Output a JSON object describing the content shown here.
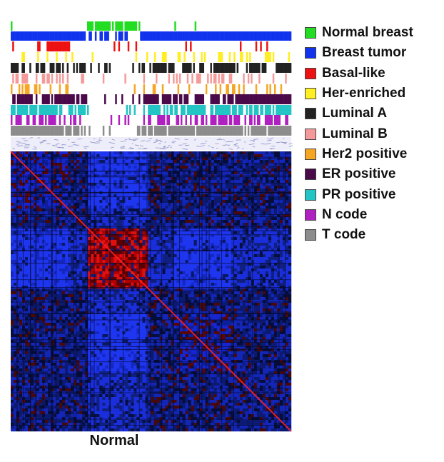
{
  "chart_data": {
    "type": "heatmap",
    "title": "",
    "xlabel": "Normal",
    "ylabel": "",
    "description_matrix": "sample-by-sample correlation matrix; red = high correlation, blue = low",
    "colors": {
      "high": "#e00000",
      "low": "#1a2ee6",
      "mid": "#0a1a6a",
      "diagonal": "#ff2020"
    },
    "annotation_tracks": [
      {
        "name": "Normal breast",
        "color": "#22dd22"
      },
      {
        "name": "Breast tumor",
        "color": "#1133ee"
      },
      {
        "name": "Basal-like",
        "color": "#ee1111"
      },
      {
        "name": "Her-enriched",
        "color": "#ffee22"
      },
      {
        "name": "Luminal A",
        "color": "#222222"
      },
      {
        "name": "Luminal B",
        "color": "#f49a9a"
      },
      {
        "name": "Her2 positive",
        "color": "#f5a623"
      },
      {
        "name": "ER positive",
        "color": "#4a0a4a"
      },
      {
        "name": "PR positive",
        "color": "#22c4c4"
      },
      {
        "name": "N code",
        "color": "#b020c0"
      },
      {
        "name": "T code",
        "color": "#8c8c8c"
      }
    ],
    "legend_position": "right"
  },
  "legend": [
    {
      "label": "Normal breast",
      "color": "#22dd22"
    },
    {
      "label": "Breast tumor",
      "color": "#1133ee"
    },
    {
      "label": "Basal-like",
      "color": "#ee1111"
    },
    {
      "label": "Her-enriched",
      "color": "#ffee22"
    },
    {
      "label": "Luminal A",
      "color": "#222222"
    },
    {
      "label": "Luminal B",
      "color": "#f49a9a"
    },
    {
      "label": "Her2 positive",
      "color": "#f5a623"
    },
    {
      "label": "ER positive",
      "color": "#4a0a4a"
    },
    {
      "label": "PR positive",
      "color": "#22c4c4"
    },
    {
      "label": "N code",
      "color": "#b020c0"
    },
    {
      "label": "T code",
      "color": "#8c8c8c"
    }
  ],
  "caption": "Normal"
}
